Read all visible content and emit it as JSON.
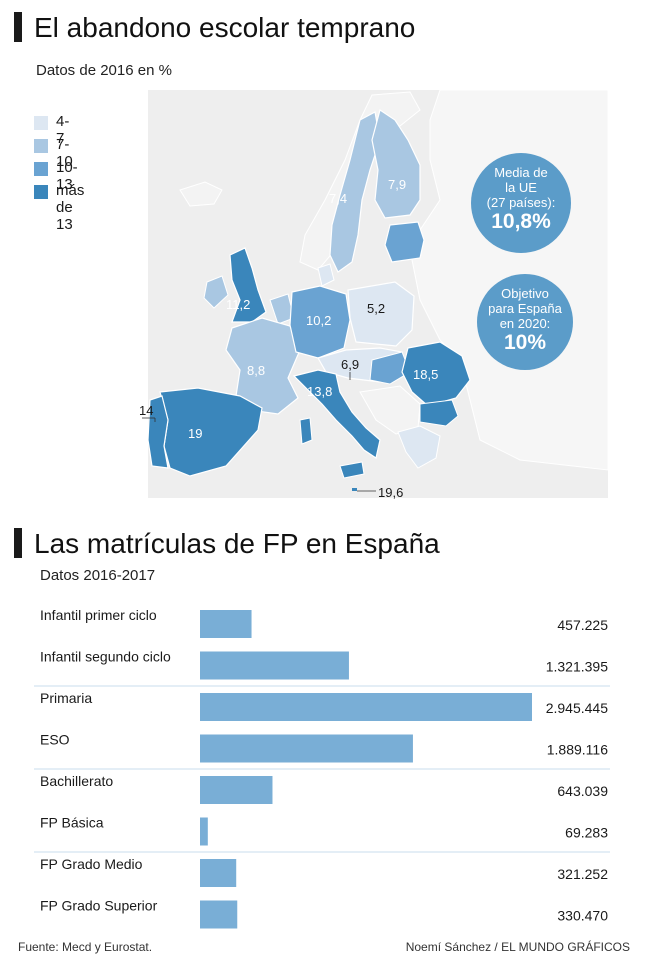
{
  "section1": {
    "title": "El abandono escolar temprano",
    "subtitle": "Datos de 2016 en %",
    "legend": [
      {
        "label": "4-7",
        "color": "#dde7f2"
      },
      {
        "label": "7-10",
        "color": "#a9c7e2"
      },
      {
        "label": "10-13",
        "color": "#6aa3d2"
      },
      {
        "label": "más de 13",
        "color": "#3a86bb"
      }
    ],
    "bubble_eu": {
      "line1": "Media de",
      "line2": "la UE",
      "line3": "(27 países):",
      "value": "10,8%"
    },
    "bubble_es": {
      "line1": "Objetivo",
      "line2": "para España",
      "line3": "en 2020:",
      "value": "10%"
    },
    "map_values": {
      "sweden": "7,4",
      "finland": "7,9",
      "uk": "11,2",
      "germany": "10,2",
      "poland": "5,2",
      "france": "8,8",
      "slovenia": "6,9",
      "romania": "18,5",
      "italy": "13,8",
      "spain": "19",
      "portugal": "14",
      "malta": "19,6"
    }
  },
  "chart_data": {
    "type": "bar",
    "orientation": "horizontal",
    "title": "Las matrículas de FP en España",
    "subtitle": "Datos 2016-2017",
    "categories": [
      "Infantil primer ciclo",
      "Infantil segundo ciclo",
      "Primaria",
      "ESO",
      "Bachillerato",
      "FP Básica",
      "FP Grado Medio",
      "FP Grado Superior"
    ],
    "values": [
      457225,
      1321395,
      2945445,
      1889116,
      643039,
      69283,
      321252,
      330470
    ],
    "value_labels": [
      "457.225",
      "1.321.395",
      "2.945.445",
      "1.889.116",
      "643.039",
      "69.283",
      "321.252",
      "330.470"
    ],
    "xlim": [
      0,
      2945445
    ],
    "bar_color": "#79aed6",
    "divider_color": "#c9dcec"
  },
  "footer": {
    "source": "Fuente: Mecd y Eurostat.",
    "credit": "Noemí Sánchez / EL MUNDO GRÁFICOS"
  }
}
